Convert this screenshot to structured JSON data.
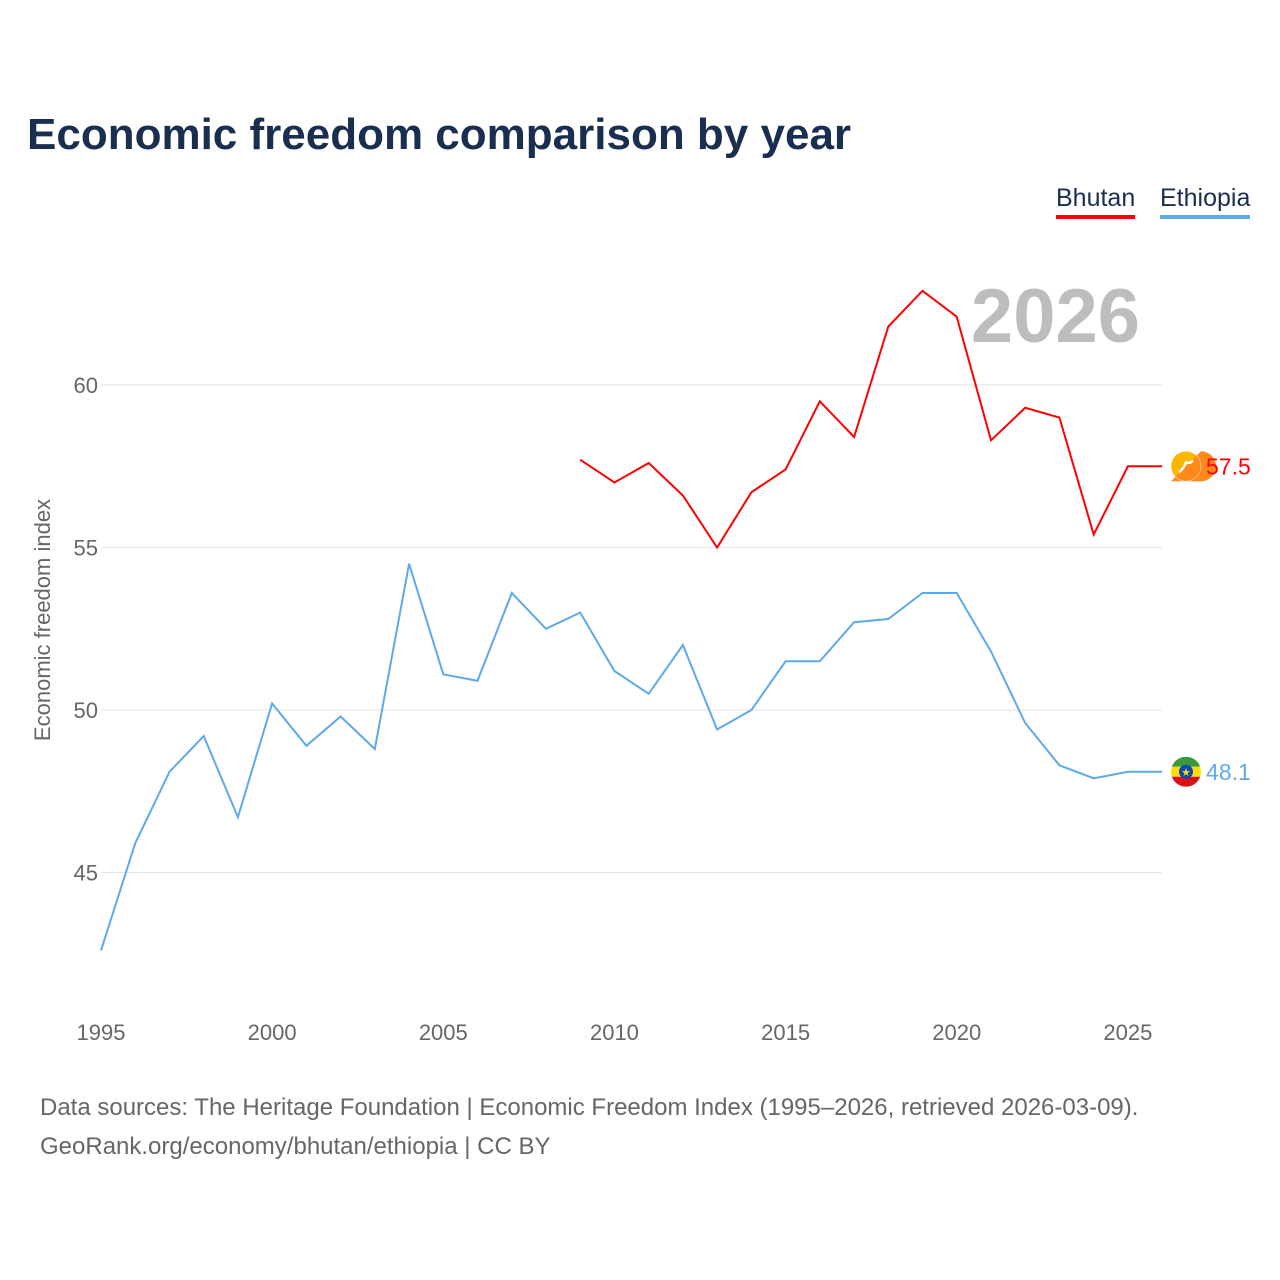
{
  "chart_data": {
    "type": "line",
    "title": "Economic freedom comparison by year",
    "ylabel": "Economic freedom index",
    "xlabel": "",
    "ylim": [
      40.5,
      64
    ],
    "xlim": [
      1995,
      2026
    ],
    "yticks": [
      45,
      50,
      55,
      60
    ],
    "xticks": [
      1995,
      2000,
      2005,
      2010,
      2015,
      2020,
      2025
    ],
    "grid": true,
    "legend_position": "top-right",
    "year_label": "2026",
    "series": [
      {
        "name": "Bhutan",
        "color": "#ff0000",
        "end_label": "57.5",
        "flag": "bhutan-flag",
        "x": [
          2009,
          2010,
          2011,
          2012,
          2013,
          2014,
          2015,
          2016,
          2017,
          2018,
          2019,
          2020,
          2021,
          2022,
          2023,
          2024,
          2025,
          2026
        ],
        "values": [
          57.7,
          57.0,
          57.6,
          56.6,
          55.0,
          56.7,
          57.4,
          59.5,
          58.4,
          61.8,
          62.9,
          62.1,
          58.3,
          59.3,
          59.0,
          55.4,
          57.5,
          57.5
        ]
      },
      {
        "name": "Ethiopia",
        "color": "#5ea8ec",
        "end_label": "48.1",
        "flag": "ethiopia-flag",
        "x": [
          1995,
          1996,
          1997,
          1998,
          1999,
          2000,
          2001,
          2002,
          2003,
          2004,
          2005,
          2006,
          2007,
          2008,
          2009,
          2010,
          2011,
          2012,
          2013,
          2014,
          2015,
          2016,
          2017,
          2018,
          2019,
          2020,
          2021,
          2022,
          2023,
          2024,
          2025,
          2026
        ],
        "values": [
          42.6,
          45.9,
          48.1,
          49.2,
          46.7,
          50.2,
          48.9,
          49.8,
          48.8,
          54.5,
          51.1,
          50.9,
          53.6,
          52.5,
          53.0,
          51.2,
          50.5,
          52.0,
          49.4,
          50.0,
          51.5,
          51.5,
          52.7,
          52.8,
          53.6,
          53.6,
          51.8,
          49.6,
          48.3,
          47.9,
          48.1,
          48.1
        ]
      }
    ]
  },
  "source": {
    "line1": "Data sources: The Heritage Foundation | Economic Freedom Index (1995–2026, retrieved 2026-03-09).",
    "line2": "GeoRank.org/economy/bhutan/ethiopia | CC BY"
  }
}
